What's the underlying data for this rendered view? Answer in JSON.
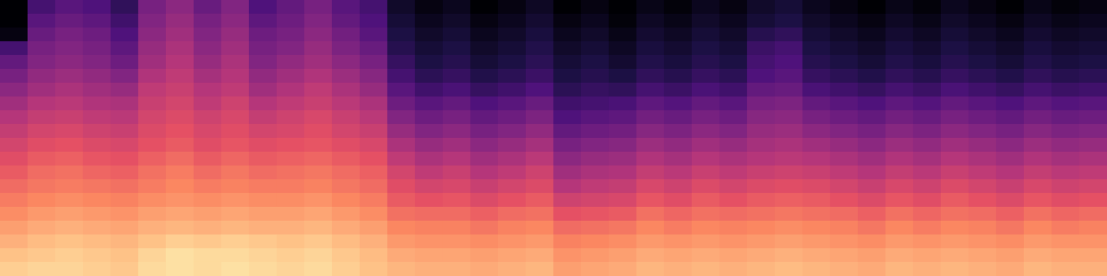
{
  "chart_data": {
    "type": "heatmap",
    "tick_labels": false,
    "color_range": [
      -80,
      0
    ],
    "cells": [
      [
        -80,
        -62,
        -58,
        -60,
        -66,
        -52,
        -48,
        -55,
        -50,
        -60,
        -56,
        -52,
        -58,
        -62,
        -74,
        -78,
        -76,
        -80,
        -78,
        -75,
        -80,
        -78,
        -80,
        -77,
        -79,
        -76,
        -78,
        -74,
        -72,
        -76,
        -78,
        -80,
        -77,
        -79,
        -76,
        -78,
        -80,
        -77,
        -79,
        -78
      ],
      [
        -80,
        -58,
        -55,
        -57,
        -63,
        -50,
        -46,
        -52,
        -48,
        -57,
        -54,
        -50,
        -56,
        -60,
        -72,
        -76,
        -74,
        -78,
        -76,
        -73,
        -78,
        -76,
        -79,
        -75,
        -77,
        -74,
        -76,
        -72,
        -70,
        -74,
        -76,
        -78,
        -75,
        -77,
        -74,
        -76,
        -78,
        -75,
        -77,
        -76
      ],
      [
        -78,
        -55,
        -52,
        -54,
        -60,
        -48,
        -44,
        -50,
        -46,
        -54,
        -52,
        -48,
        -53,
        -58,
        -70,
        -74,
        -72,
        -76,
        -74,
        -71,
        -76,
        -74,
        -77,
        -73,
        -75,
        -72,
        -74,
        -68,
        -66,
        -72,
        -74,
        -76,
        -73,
        -75,
        -72,
        -74,
        -76,
        -73,
        -75,
        -74
      ],
      [
        -62,
        -52,
        -50,
        -52,
        -57,
        -46,
        -42,
        -48,
        -44,
        -52,
        -50,
        -46,
        -51,
        -55,
        -68,
        -72,
        -70,
        -74,
        -72,
        -69,
        -74,
        -72,
        -75,
        -71,
        -73,
        -70,
        -72,
        -64,
        -62,
        -70,
        -72,
        -74,
        -71,
        -73,
        -70,
        -72,
        -74,
        -71,
        -73,
        -72
      ],
      [
        -56,
        -50,
        -48,
        -50,
        -54,
        -44,
        -40,
        -46,
        -42,
        -50,
        -47,
        -44,
        -48,
        -52,
        -65,
        -70,
        -68,
        -72,
        -70,
        -67,
        -72,
        -70,
        -73,
        -69,
        -71,
        -68,
        -70,
        -62,
        -60,
        -68,
        -70,
        -72,
        -69,
        -71,
        -68,
        -70,
        -72,
        -69,
        -71,
        -70
      ],
      [
        -52,
        -47,
        -45,
        -47,
        -50,
        -41,
        -38,
        -43,
        -40,
        -47,
        -44,
        -41,
        -45,
        -49,
        -62,
        -67,
        -65,
        -69,
        -67,
        -64,
        -70,
        -68,
        -70,
        -66,
        -68,
        -65,
        -67,
        -60,
        -58,
        -65,
        -67,
        -69,
        -66,
        -68,
        -65,
        -67,
        -69,
        -66,
        -68,
        -67
      ],
      [
        -48,
        -44,
        -42,
        -44,
        -46,
        -38,
        -36,
        -40,
        -38,
        -44,
        -41,
        -38,
        -42,
        -46,
        -58,
        -63,
        -61,
        -65,
        -63,
        -60,
        -67,
        -65,
        -66,
        -62,
        -64,
        -61,
        -63,
        -56,
        -55,
        -61,
        -63,
        -65,
        -62,
        -64,
        -61,
        -63,
        -65,
        -62,
        -64,
        -63
      ],
      [
        -44,
        -40,
        -39,
        -41,
        -42,
        -36,
        -34,
        -38,
        -35,
        -40,
        -38,
        -36,
        -39,
        -42,
        -54,
        -58,
        -56,
        -60,
        -58,
        -55,
        -63,
        -62,
        -61,
        -57,
        -59,
        -56,
        -58,
        -52,
        -51,
        -56,
        -58,
        -60,
        -57,
        -59,
        -56,
        -58,
        -60,
        -57,
        -59,
        -58
      ],
      [
        -40,
        -37,
        -36,
        -38,
        -39,
        -34,
        -32,
        -35,
        -33,
        -37,
        -35,
        -33,
        -36,
        -39,
        -50,
        -54,
        -52,
        -56,
        -54,
        -51,
        -60,
        -58,
        -57,
        -53,
        -55,
        -52,
        -54,
        -49,
        -48,
        -52,
        -54,
        -56,
        -53,
        -55,
        -52,
        -54,
        -56,
        -53,
        -55,
        -54
      ],
      [
        -37,
        -34,
        -33,
        -35,
        -36,
        -32,
        -30,
        -33,
        -31,
        -34,
        -33,
        -31,
        -34,
        -36,
        -46,
        -50,
        -48,
        -52,
        -50,
        -47,
        -56,
        -54,
        -53,
        -49,
        -51,
        -48,
        -50,
        -46,
        -45,
        -48,
        -50,
        -52,
        -49,
        -51,
        -48,
        -50,
        -52,
        -49,
        -51,
        -50
      ],
      [
        -34,
        -31,
        -30,
        -32,
        -33,
        -30,
        -28,
        -31,
        -29,
        -31,
        -30,
        -29,
        -31,
        -33,
        -42,
        -46,
        -44,
        -48,
        -46,
        -43,
        -52,
        -50,
        -49,
        -45,
        -47,
        -44,
        -46,
        -43,
        -42,
        -44,
        -46,
        -48,
        -45,
        -47,
        -44,
        -46,
        -48,
        -45,
        -47,
        -46
      ],
      [
        -31,
        -28,
        -27,
        -29,
        -30,
        -27,
        -25,
        -28,
        -26,
        -28,
        -27,
        -26,
        -28,
        -30,
        -38,
        -42,
        -40,
        -44,
        -42,
        -39,
        -48,
        -46,
        -45,
        -41,
        -43,
        -40,
        -42,
        -40,
        -39,
        -40,
        -42,
        -44,
        -41,
        -43,
        -40,
        -42,
        -44,
        -41,
        -43,
        -42
      ],
      [
        -28,
        -25,
        -24,
        -26,
        -27,
        -24,
        -22,
        -25,
        -23,
        -25,
        -24,
        -23,
        -25,
        -27,
        -34,
        -38,
        -36,
        -40,
        -38,
        -35,
        -44,
        -42,
        -41,
        -37,
        -39,
        -36,
        -38,
        -36,
        -35,
        -36,
        -38,
        -40,
        -37,
        -39,
        -36,
        -38,
        -40,
        -37,
        -39,
        -38
      ],
      [
        -25,
        -23,
        -22,
        -23,
        -24,
        -22,
        -20,
        -22,
        -21,
        -22,
        -22,
        -21,
        -23,
        -25,
        -31,
        -34,
        -33,
        -36,
        -34,
        -32,
        -40,
        -38,
        -37,
        -33,
        -35,
        -32,
        -34,
        -32,
        -31,
        -32,
        -34,
        -36,
        -33,
        -35,
        -32,
        -34,
        -36,
        -33,
        -35,
        -34
      ],
      [
        -22,
        -20,
        -19,
        -20,
        -21,
        -19,
        -18,
        -19,
        -18,
        -19,
        -19,
        -18,
        -20,
        -22,
        -28,
        -30,
        -29,
        -32,
        -30,
        -28,
        -35,
        -34,
        -33,
        -29,
        -31,
        -28,
        -30,
        -28,
        -27,
        -28,
        -30,
        -32,
        -29,
        -31,
        -28,
        -30,
        -32,
        -29,
        -31,
        -30
      ],
      [
        -19,
        -17,
        -16,
        -17,
        -18,
        -16,
        -15,
        -16,
        -15,
        -16,
        -16,
        -15,
        -17,
        -19,
        -24,
        -25,
        -25,
        -27,
        -25,
        -24,
        -30,
        -29,
        -28,
        -24,
        -26,
        -24,
        -25,
        -24,
        -23,
        -24,
        -25,
        -27,
        -24,
        -26,
        -24,
        -25,
        -27,
        -24,
        -26,
        -25
      ],
      [
        -16,
        -14,
        -13,
        -14,
        -15,
        -13,
        -12,
        -13,
        -12,
        -13,
        -13,
        -12,
        -14,
        -16,
        -20,
        -21,
        -21,
        -23,
        -21,
        -20,
        -25,
        -24,
        -23,
        -20,
        -22,
        -20,
        -21,
        -20,
        -19,
        -20,
        -21,
        -23,
        -20,
        -22,
        -20,
        -21,
        -23,
        -20,
        -22,
        -21
      ],
      [
        -13,
        -11,
        -10,
        -11,
        -12,
        -10,
        -8,
        -9,
        -8,
        -9,
        -10,
        -9,
        -11,
        -13,
        -17,
        -18,
        -18,
        -19,
        -18,
        -17,
        -21,
        -20,
        -19,
        -17,
        -18,
        -17,
        -18,
        -17,
        -16,
        -17,
        -18,
        -19,
        -17,
        -18,
        -17,
        -18,
        -19,
        -17,
        -18,
        -18
      ],
      [
        -10,
        -9,
        -8,
        -9,
        -10,
        -7,
        -5,
        -6,
        -6,
        -7,
        -8,
        -7,
        -9,
        -11,
        -14,
        -15,
        -15,
        -16,
        -15,
        -14,
        -18,
        -17,
        -16,
        -14,
        -15,
        -14,
        -15,
        -14,
        -13,
        -14,
        -15,
        -16,
        -14,
        -15,
        -14,
        -15,
        -16,
        -14,
        -15,
        -15
      ],
      [
        -8,
        -7,
        -7,
        -8,
        -9,
        -6,
        -5,
        -6,
        -5,
        -6,
        -7,
        -6,
        -8,
        -10,
        -12,
        -13,
        -13,
        -14,
        -13,
        -12,
        -16,
        -15,
        -14,
        -12,
        -13,
        -12,
        -13,
        -12,
        -11,
        -12,
        -13,
        -14,
        -12,
        -13,
        -12,
        -13,
        -14,
        -12,
        -13,
        -13
      ]
    ]
  }
}
